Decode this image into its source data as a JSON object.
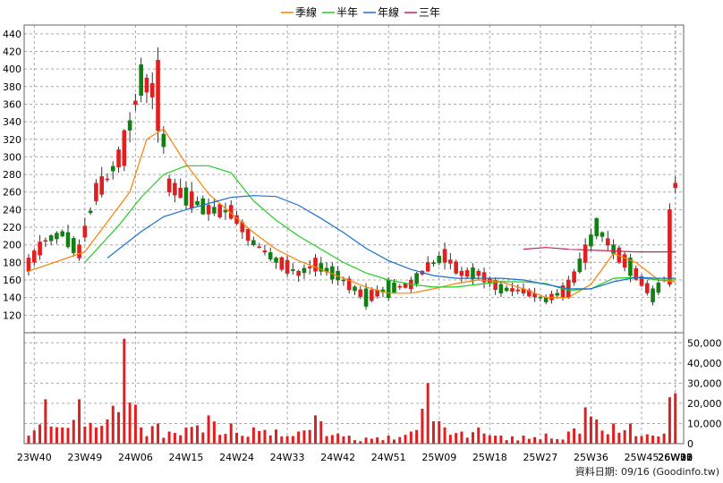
{
  "legend": [
    {
      "label": "季線",
      "color": "#ff8000"
    },
    {
      "label": "半年",
      "color": "#22cc22"
    },
    {
      "label": "年線",
      "color": "#1e6fd0"
    },
    {
      "label": "三年",
      "color": "#cc2255"
    }
  ],
  "source_text": "資料日期: 09/16  (Goodinfo.tw)",
  "colors": {
    "up": "#e02020",
    "down": "#108010",
    "vol": "#e02020",
    "grid": "#aaaaaa"
  },
  "chart_data": {
    "type": "candlestick",
    "price_axis": {
      "ticks": [
        120,
        140,
        160,
        180,
        200,
        220,
        240,
        260,
        280,
        300,
        320,
        340,
        360,
        380,
        400,
        420,
        440
      ],
      "range": [
        100,
        450
      ],
      "position": "left"
    },
    "volume_axis": {
      "ticks": [
        0,
        10000,
        20000,
        30000,
        40000,
        50000
      ],
      "tick_labels": [
        "0",
        "10,000",
        "20,000",
        "30,000",
        "40,000",
        "50,000"
      ],
      "range": [
        0,
        55000
      ],
      "position": "right"
    },
    "x_tick_labels": [
      "23W40",
      "23W49",
      "24W06",
      "24W15",
      "24W24",
      "24W33",
      "24W42",
      "24W51",
      "25W09",
      "25W18",
      "25W27",
      "25W36",
      "25W45",
      "26W02",
      "26W12",
      "26W21",
      "26W30",
      "26W38"
    ],
    "grid": true,
    "legend_position": "top-center",
    "anchors": [
      [
        0,
        170,
        185,
        4000
      ],
      [
        3,
        205,
        205,
        22000
      ],
      [
        6,
        215,
        210,
        8000
      ],
      [
        9,
        185,
        200,
        22000
      ],
      [
        12,
        250,
        270,
        8000
      ],
      [
        14,
        275,
        275,
        12000
      ],
      [
        17,
        290,
        330,
        52000
      ],
      [
        20,
        405,
        370,
        8000
      ],
      [
        23,
        330,
        410,
        10000
      ],
      [
        25,
        260,
        275,
        6000
      ],
      [
        28,
        265,
        245,
        8000
      ],
      [
        32,
        235,
        245,
        14000
      ],
      [
        36,
        230,
        245,
        10000
      ],
      [
        40,
        205,
        200,
        8000
      ],
      [
        44,
        185,
        180,
        7000
      ],
      [
        48,
        165,
        170,
        6000
      ],
      [
        51,
        170,
        185,
        14000
      ],
      [
        55,
        170,
        160,
        5000
      ],
      [
        60,
        150,
        130,
        3000
      ],
      [
        64,
        160,
        140,
        4000
      ],
      [
        68,
        150,
        160,
        6000
      ],
      [
        71,
        170,
        180,
        30000
      ],
      [
        74,
        180,
        195,
        8000
      ],
      [
        77,
        165,
        170,
        6000
      ],
      [
        80,
        165,
        170,
        8000
      ],
      [
        84,
        155,
        145,
        4000
      ],
      [
        88,
        145,
        150,
        4000
      ],
      [
        92,
        140,
        135,
        5000
      ],
      [
        96,
        140,
        160,
        6000
      ],
      [
        99,
        180,
        200,
        18000
      ],
      [
        101,
        230,
        210,
        12000
      ],
      [
        104,
        200,
        190,
        10000
      ],
      [
        107,
        185,
        165,
        10000
      ],
      [
        111,
        150,
        135,
        4000
      ],
      [
        113,
        160,
        160,
        5000
      ],
      [
        114,
        155,
        240,
        23000
      ],
      [
        115,
        265,
        270,
        25000
      ]
    ],
    "series": [
      {
        "name": "季線",
        "x": [
          0,
          10,
          18,
          21,
          24,
          28,
          32,
          36,
          40,
          44,
          48,
          52,
          56,
          60,
          64,
          68,
          72,
          76,
          80,
          84,
          88,
          92,
          96,
          100,
          104,
          108,
          112,
          115
        ],
        "y": [
          170,
          192,
          260,
          320,
          332,
          292,
          258,
          236,
          214,
          195,
          182,
          172,
          162,
          152,
          145,
          145,
          150,
          156,
          160,
          158,
          150,
          140,
          140,
          155,
          190,
          180,
          160,
          158
        ]
      },
      {
        "name": "半年",
        "x": [
          10,
          16,
          20,
          24,
          28,
          32,
          36,
          40,
          44,
          48,
          52,
          56,
          60,
          64,
          68,
          72,
          76,
          80,
          84,
          88,
          92,
          96,
          100,
          104,
          108,
          112,
          115
        ],
        "y": [
          180,
          222,
          254,
          280,
          290,
          290,
          282,
          250,
          228,
          210,
          195,
          180,
          168,
          160,
          155,
          152,
          152,
          155,
          158,
          158,
          156,
          148,
          150,
          162,
          163,
          160,
          160
        ]
      },
      {
        "name": "年線",
        "x": [
          14,
          20,
          24,
          28,
          32,
          36,
          40,
          44,
          48,
          52,
          56,
          60,
          64,
          68,
          72,
          76,
          80,
          84,
          88,
          92,
          96,
          100,
          104,
          108,
          112,
          115
        ],
        "y": [
          185,
          215,
          232,
          240,
          247,
          254,
          256,
          255,
          245,
          230,
          214,
          196,
          182,
          172,
          165,
          162,
          162,
          162,
          160,
          155,
          150,
          150,
          158,
          163,
          162,
          162
        ]
      },
      {
        "name": "三年",
        "x": [
          88,
          92,
          96,
          100,
          104,
          108,
          112,
          115
        ],
        "y": [
          195,
          197,
          195,
          194,
          193,
          192,
          192,
          192
        ]
      }
    ]
  }
}
